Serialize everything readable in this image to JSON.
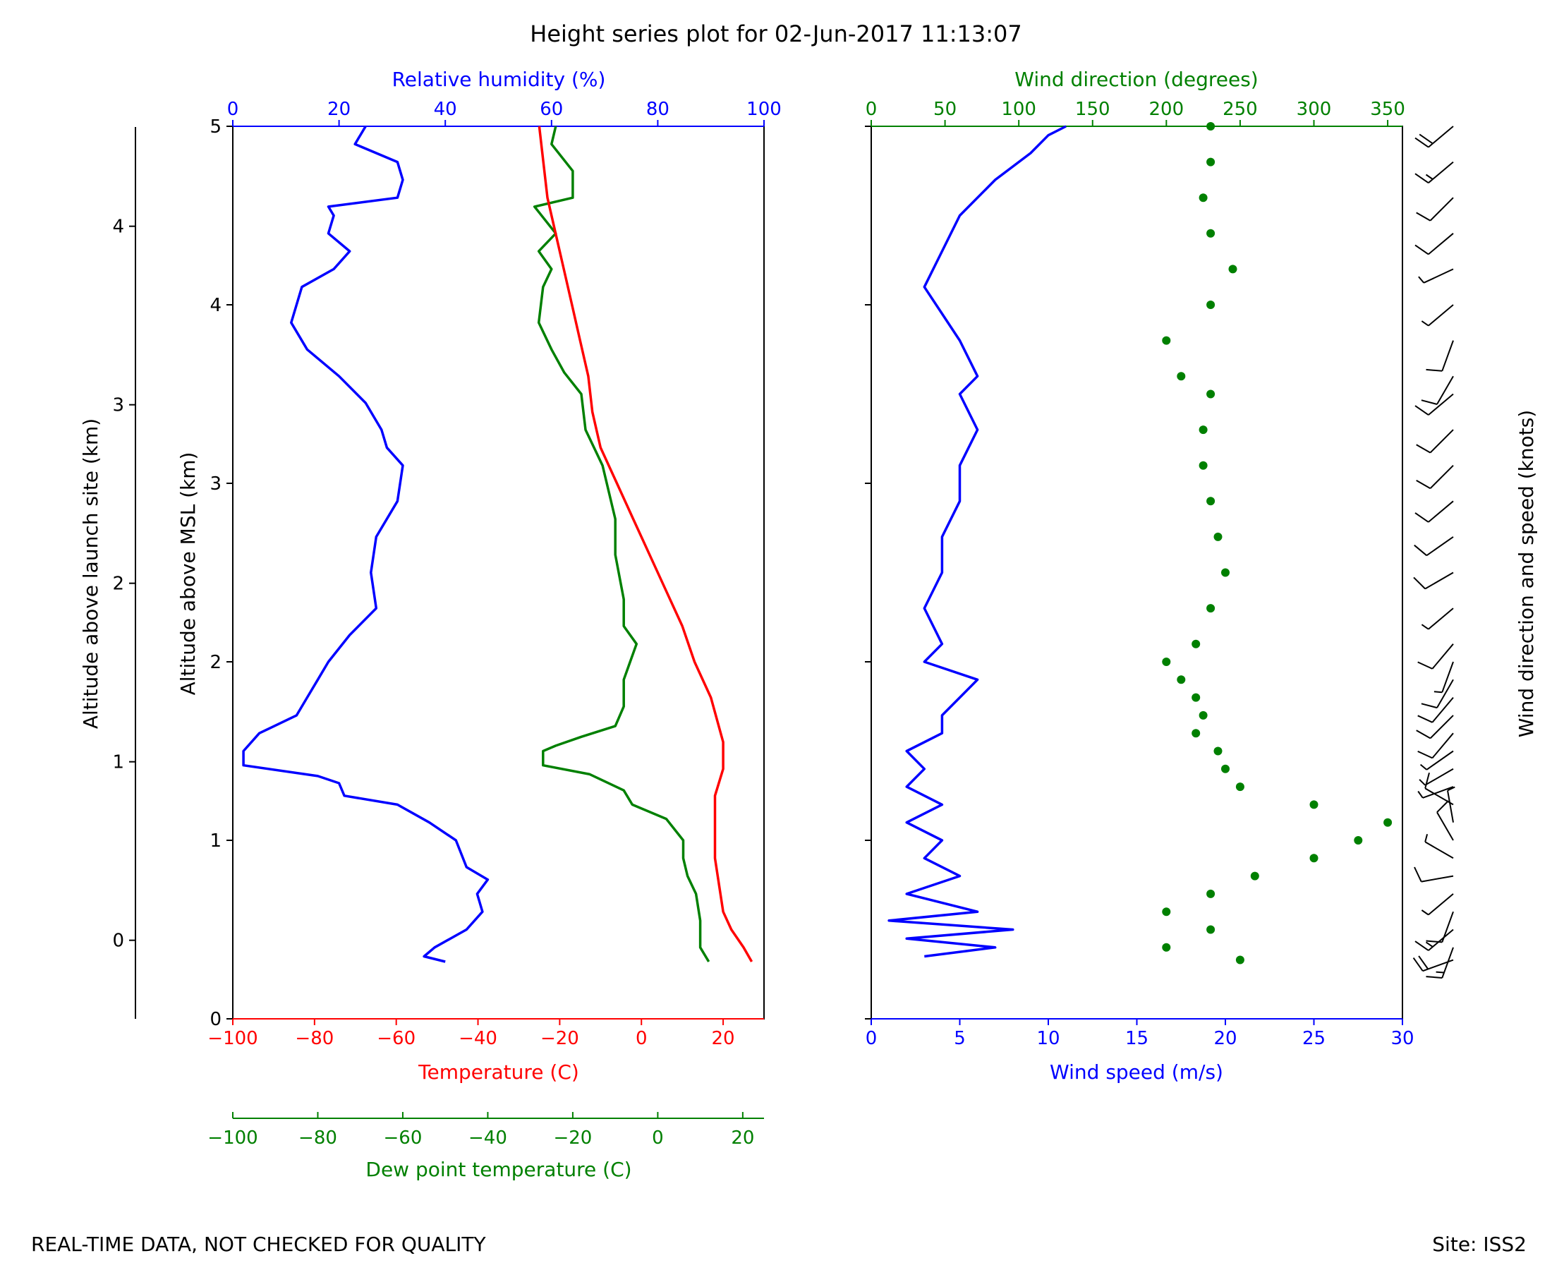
{
  "title": "Height series plot for 02-Jun-2017 11:13:07",
  "footer": {
    "note": "REAL-TIME DATA, NOT CHECKED FOR QUALITY",
    "site": "Site: ISS2"
  },
  "colors": {
    "temperature": "#ff0000",
    "dewpoint": "#008000",
    "humidity": "#0000ff",
    "wind_speed": "#0000ff",
    "wind_direction": "#008000",
    "barbs": "#000000"
  },
  "chart_data": [
    {
      "type": "line",
      "name": "thermo",
      "y_axes": [
        {
          "label": "Altitude above MSL (km)",
          "ylim": [
            0,
            5
          ],
          "ticks": [
            0,
            1,
            2,
            3,
            4,
            5
          ]
        },
        {
          "label": "Altitude above launch site (km)",
          "ylim": [
            -0.44,
            4.56
          ],
          "ticks": [
            0,
            1,
            2,
            3,
            4
          ]
        }
      ],
      "x_axes": {
        "temperature": {
          "label": "Temperature (C)",
          "xlim": [
            -100,
            30
          ],
          "ticks": [
            -100,
            -80,
            -60,
            -40,
            -20,
            0,
            20
          ]
        },
        "dewpoint": {
          "label": "Dew point temperature (C)",
          "xlim": [
            -100,
            25
          ],
          "ticks": [
            -100,
            -80,
            -60,
            -40,
            -20,
            0,
            20
          ]
        },
        "humidity": {
          "label": "Relative humidity (%)",
          "xlim": [
            0,
            100
          ],
          "ticks": [
            0,
            20,
            40,
            60,
            80,
            100
          ]
        }
      },
      "series": [
        {
          "name": "Temperature",
          "axis": "temperature",
          "points": [
            [
              27,
              0.32
            ],
            [
              25,
              0.4
            ],
            [
              22,
              0.5
            ],
            [
              20,
              0.6
            ],
            [
              19,
              0.75
            ],
            [
              18,
              0.9
            ],
            [
              18,
              1.1
            ],
            [
              18,
              1.25
            ],
            [
              20,
              1.4
            ],
            [
              20,
              1.55
            ],
            [
              17,
              1.8
            ],
            [
              13,
              2.0
            ],
            [
              10,
              2.2
            ],
            [
              6,
              2.4
            ],
            [
              2,
              2.6
            ],
            [
              -2,
              2.8
            ],
            [
              -6,
              3.0
            ],
            [
              -10,
              3.2
            ],
            [
              -12,
              3.4
            ],
            [
              -13,
              3.6
            ],
            [
              -15,
              3.8
            ],
            [
              -17,
              4.0
            ],
            [
              -19,
              4.2
            ],
            [
              -21,
              4.4
            ],
            [
              -23,
              4.6
            ],
            [
              -24,
              4.8
            ],
            [
              -25,
              5.0
            ]
          ]
        },
        {
          "name": "Dew point temperature",
          "axis": "dewpoint",
          "points": [
            [
              12,
              0.32
            ],
            [
              10,
              0.4
            ],
            [
              10,
              0.55
            ],
            [
              9,
              0.7
            ],
            [
              7,
              0.8
            ],
            [
              6,
              0.9
            ],
            [
              6,
              1.0
            ],
            [
              2,
              1.12
            ],
            [
              -6,
              1.2
            ],
            [
              -8,
              1.28
            ],
            [
              -16,
              1.37
            ],
            [
              -27,
              1.42
            ],
            [
              -27,
              1.5
            ],
            [
              -24,
              1.53
            ],
            [
              -18,
              1.58
            ],
            [
              -10,
              1.64
            ],
            [
              -8,
              1.75
            ],
            [
              -8,
              1.9
            ],
            [
              -5,
              2.1
            ],
            [
              -8,
              2.2
            ],
            [
              -8,
              2.35
            ],
            [
              -10,
              2.6
            ],
            [
              -10,
              2.8
            ],
            [
              -13,
              3.1
            ],
            [
              -17,
              3.3
            ],
            [
              -18,
              3.5
            ],
            [
              -22,
              3.62
            ],
            [
              -25,
              3.75
            ],
            [
              -28,
              3.9
            ],
            [
              -27,
              4.1
            ],
            [
              -25,
              4.2
            ],
            [
              -28,
              4.3
            ],
            [
              -24,
              4.4
            ],
            [
              -28,
              4.52
            ],
            [
              -29,
              4.55
            ],
            [
              -20,
              4.6
            ],
            [
              -20,
              4.75
            ],
            [
              -25,
              4.9
            ],
            [
              -24,
              5.0
            ]
          ]
        },
        {
          "name": "Relative humidity",
          "axis": "humidity",
          "points": [
            [
              40,
              0.32
            ],
            [
              36,
              0.35
            ],
            [
              38,
              0.4
            ],
            [
              44,
              0.5
            ],
            [
              47,
              0.6
            ],
            [
              46,
              0.7
            ],
            [
              48,
              0.78
            ],
            [
              44,
              0.85
            ],
            [
              42,
              1.0
            ],
            [
              37,
              1.1
            ],
            [
              31,
              1.2
            ],
            [
              21,
              1.25
            ],
            [
              20,
              1.32
            ],
            [
              16,
              1.36
            ],
            [
              2,
              1.42
            ],
            [
              2,
              1.5
            ],
            [
              5,
              1.6
            ],
            [
              12,
              1.7
            ],
            [
              14,
              1.8
            ],
            [
              16,
              1.9
            ],
            [
              18,
              2.0
            ],
            [
              22,
              2.15
            ],
            [
              27,
              2.3
            ],
            [
              26,
              2.5
            ],
            [
              27,
              2.7
            ],
            [
              31,
              2.9
            ],
            [
              32,
              3.1
            ],
            [
              29,
              3.2
            ],
            [
              28,
              3.3
            ],
            [
              25,
              3.45
            ],
            [
              20,
              3.6
            ],
            [
              14,
              3.75
            ],
            [
              11,
              3.9
            ],
            [
              13,
              4.1
            ],
            [
              19,
              4.2
            ],
            [
              22,
              4.3
            ],
            [
              18,
              4.4
            ],
            [
              19,
              4.5
            ],
            [
              18,
              4.55
            ],
            [
              31,
              4.6
            ],
            [
              32,
              4.7
            ],
            [
              31,
              4.8
            ],
            [
              23,
              4.9
            ],
            [
              25,
              5.0
            ]
          ]
        }
      ]
    },
    {
      "type": "line",
      "name": "wind",
      "y_axes": [
        {
          "label": "",
          "ylim": [
            0,
            5
          ],
          "ticks": [
            0,
            1,
            2,
            3,
            4,
            5
          ]
        }
      ],
      "x_axes": {
        "wind_speed": {
          "label": "Wind speed (m/s)",
          "xlim": [
            0,
            30
          ],
          "ticks": [
            0,
            5,
            10,
            15,
            20,
            25,
            30
          ]
        },
        "wind_direction": {
          "label": "Wind direction (degrees)",
          "xlim": [
            0,
            360
          ],
          "ticks": [
            0,
            50,
            100,
            150,
            200,
            250,
            300,
            350
          ]
        }
      },
      "series": [
        {
          "name": "Wind speed",
          "axis": "wind_speed",
          "points": [
            [
              3,
              0.35
            ],
            [
              7,
              0.4
            ],
            [
              2,
              0.45
            ],
            [
              8,
              0.5
            ],
            [
              1,
              0.55
            ],
            [
              6,
              0.6
            ],
            [
              2,
              0.7
            ],
            [
              5,
              0.8
            ],
            [
              3,
              0.9
            ],
            [
              4,
              1.0
            ],
            [
              2,
              1.1
            ],
            [
              4,
              1.2
            ],
            [
              2,
              1.3
            ],
            [
              3,
              1.4
            ],
            [
              2,
              1.5
            ],
            [
              4,
              1.6
            ],
            [
              4,
              1.7
            ],
            [
              5,
              1.8
            ],
            [
              6,
              1.9
            ],
            [
              3,
              2.0
            ],
            [
              4,
              2.1
            ],
            [
              3,
              2.3
            ],
            [
              4,
              2.5
            ],
            [
              4,
              2.7
            ],
            [
              5,
              2.9
            ],
            [
              5,
              3.1
            ],
            [
              6,
              3.3
            ],
            [
              5,
              3.5
            ],
            [
              6,
              3.6
            ],
            [
              5,
              3.8
            ],
            [
              4,
              3.95
            ],
            [
              3,
              4.1
            ],
            [
              4,
              4.3
            ],
            [
              5,
              4.5
            ],
            [
              7,
              4.7
            ],
            [
              9,
              4.85
            ],
            [
              10,
              4.95
            ],
            [
              11,
              5.0
            ]
          ]
        },
        {
          "name": "Wind direction",
          "axis": "wind_direction",
          "points": [
            [
              250,
              0.33
            ],
            [
              200,
              0.4
            ],
            [
              230,
              0.5
            ],
            [
              200,
              0.6
            ],
            [
              230,
              0.7
            ],
            [
              260,
              0.8
            ],
            [
              300,
              0.9
            ],
            [
              330,
              1.0
            ],
            [
              350,
              1.1
            ],
            [
              300,
              1.2
            ],
            [
              250,
              1.3
            ],
            [
              240,
              1.4
            ],
            [
              235,
              1.5
            ],
            [
              220,
              1.6
            ],
            [
              225,
              1.7
            ],
            [
              220,
              1.8
            ],
            [
              210,
              1.9
            ],
            [
              200,
              2.0
            ],
            [
              220,
              2.1
            ],
            [
              230,
              2.3
            ],
            [
              240,
              2.5
            ],
            [
              235,
              2.7
            ],
            [
              230,
              2.9
            ],
            [
              225,
              3.1
            ],
            [
              225,
              3.3
            ],
            [
              230,
              3.5
            ],
            [
              210,
              3.6
            ],
            [
              200,
              3.8
            ],
            [
              230,
              4.0
            ],
            [
              245,
              4.2
            ],
            [
              230,
              4.4
            ],
            [
              225,
              4.6
            ],
            [
              230,
              4.8
            ],
            [
              230,
              5.0
            ]
          ]
        }
      ]
    },
    {
      "type": "barbs",
      "name": "wind-barbs",
      "label": "Wind direction and speed (knots)"
    }
  ]
}
